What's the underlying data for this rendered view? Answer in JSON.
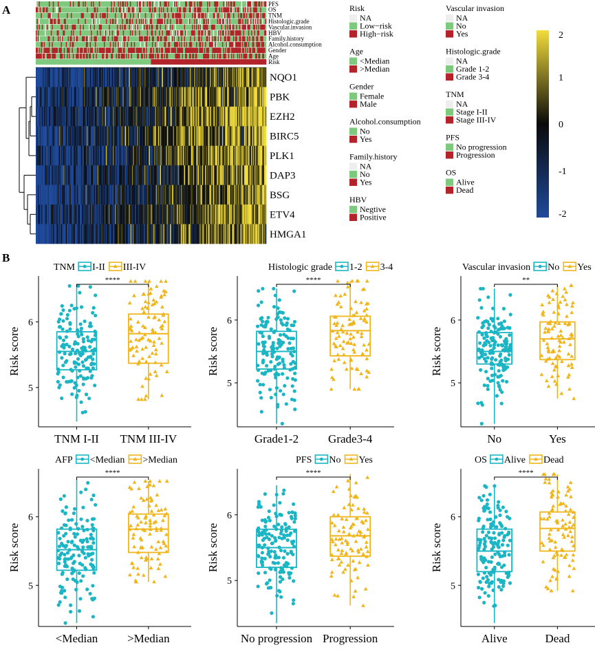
{
  "panel_labels": {
    "a": "A",
    "b": "B"
  },
  "colors": {
    "ann_green": "#7fc97f",
    "ann_red": "#b2232a",
    "ann_na": "#eeeeee",
    "heat_low": "#1f4a9b",
    "heat_mid": "#0a0a0a",
    "heat_high": "#f2dd3b",
    "box_left": "#1bb5c4",
    "box_right": "#f0b51a"
  },
  "heatmap": {
    "annotation_tracks": [
      "PFS",
      "OS",
      "TNM",
      "Histologic.grade",
      "Vascular.invasion",
      "HBV",
      "Family.history",
      "Alcohol.consumption",
      "Gender",
      "Age",
      "Risk"
    ],
    "genes": [
      "NQO1",
      "PBK",
      "EZH2",
      "BIRC5",
      "PLK1",
      "DAP3",
      "BSG",
      "ETV4",
      "HMGA1"
    ],
    "colorbar": {
      "ticks": [
        "2",
        "1",
        "0",
        "-1",
        "-2"
      ],
      "min": -2,
      "max": 2
    }
  },
  "legends": [
    {
      "title": "Risk",
      "items": [
        {
          "label": "NA",
          "color": "#eeeeee"
        },
        {
          "label": "Low−risk",
          "color": "#7fc97f"
        },
        {
          "label": "High−risk",
          "color": "#b2232a"
        }
      ]
    },
    {
      "title": "Age",
      "items": [
        {
          "label": "<Median",
          "color": "#7fc97f"
        },
        {
          "label": ">Median",
          "color": "#b2232a"
        }
      ]
    },
    {
      "title": "Gender",
      "items": [
        {
          "label": "Female",
          "color": "#7fc97f"
        },
        {
          "label": "Male",
          "color": "#b2232a"
        }
      ]
    },
    {
      "title": "Alcohol.consumption",
      "items": [
        {
          "label": "No",
          "color": "#7fc97f"
        },
        {
          "label": "Yes",
          "color": "#b2232a"
        }
      ]
    },
    {
      "title": "Family.history",
      "items": [
        {
          "label": "NA",
          "color": "#eeeeee"
        },
        {
          "label": "No",
          "color": "#7fc97f"
        },
        {
          "label": "Yes",
          "color": "#b2232a"
        }
      ]
    },
    {
      "title": "HBV",
      "items": [
        {
          "label": "Negtive",
          "color": "#7fc97f"
        },
        {
          "label": "Positive",
          "color": "#b2232a"
        }
      ]
    },
    {
      "title": "Vascular invasion",
      "items": [
        {
          "label": "NA",
          "color": "#eeeeee"
        },
        {
          "label": "No",
          "color": "#7fc97f"
        },
        {
          "label": "Yes",
          "color": "#b2232a"
        }
      ]
    },
    {
      "title": "Histologic.grade",
      "items": [
        {
          "label": "NA",
          "color": "#eeeeee"
        },
        {
          "label": "Grade 1-2",
          "color": "#7fc97f"
        },
        {
          "label": "Grade 3-4",
          "color": "#b2232a"
        }
      ]
    },
    {
      "title": "TNM",
      "items": [
        {
          "label": "NA",
          "color": "#eeeeee"
        },
        {
          "label": "Stage I-II",
          "color": "#7fc97f"
        },
        {
          "label": "Stage III-IV",
          "color": "#b2232a"
        }
      ]
    },
    {
      "title": "PFS",
      "items": [
        {
          "label": "No progression",
          "color": "#7fc97f"
        },
        {
          "label": "Progression",
          "color": "#b2232a"
        }
      ]
    },
    {
      "title": "OS",
      "items": [
        {
          "label": "Alive",
          "color": "#7fc97f"
        },
        {
          "label": "Dead",
          "color": "#b2232a"
        }
      ]
    }
  ],
  "chart_data": [
    {
      "type": "box",
      "legend_title": "TNM",
      "legend_labels": [
        "I-II",
        "III-IV"
      ],
      "categories": [
        "TNM I-II",
        "TNM III-IV"
      ],
      "ylabel": "Risk score",
      "yticks": [
        5,
        6
      ],
      "ylim": [
        4.4,
        6.7
      ],
      "significance": "****",
      "boxes": [
        {
          "q1": 5.27,
          "median": 5.55,
          "q3": 5.85,
          "whisker_low": 4.48,
          "whisker_high": 6.55
        },
        {
          "q1": 5.37,
          "median": 5.82,
          "q3": 6.12,
          "whisker_low": 4.82,
          "whisker_high": 6.62
        }
      ]
    },
    {
      "type": "box",
      "legend_title": "Histologic grade",
      "legend_labels": [
        "1-2",
        "3-4"
      ],
      "categories": [
        "Grade1-2",
        "Grade3-4"
      ],
      "ylabel": "Risk score",
      "yticks": [
        5,
        6
      ],
      "ylim": [
        4.3,
        6.7
      ],
      "significance": "****",
      "boxes": [
        {
          "q1": 5.22,
          "median": 5.5,
          "q3": 5.82,
          "whisker_low": 4.35,
          "whisker_high": 6.5
        },
        {
          "q1": 5.43,
          "median": 5.83,
          "q3": 6.06,
          "whisker_low": 4.9,
          "whisker_high": 6.62
        }
      ]
    },
    {
      "type": "box",
      "legend_title": "Vascular invasion",
      "legend_labels": [
        "No",
        "Yes"
      ],
      "categories": [
        "No",
        "Yes"
      ],
      "ylabel": "Risk score",
      "yticks": [
        5,
        6
      ],
      "ylim": [
        4.3,
        6.7
      ],
      "significance": "**",
      "boxes": [
        {
          "q1": 5.3,
          "median": 5.5,
          "q3": 5.8,
          "whisker_low": 4.35,
          "whisker_high": 6.5
        },
        {
          "q1": 5.37,
          "median": 5.7,
          "q3": 5.97,
          "whisker_low": 4.75,
          "whisker_high": 6.55
        }
      ]
    },
    {
      "type": "box",
      "legend_title": "AFP",
      "legend_labels": [
        "<Median",
        ">Median"
      ],
      "categories": [
        "<Median",
        ">Median"
      ],
      "ylabel": "Risk score",
      "yticks": [
        5,
        6
      ],
      "ylim": [
        4.4,
        6.7
      ],
      "significance": "****",
      "boxes": [
        {
          "q1": 5.22,
          "median": 5.52,
          "q3": 5.82,
          "whisker_low": 4.45,
          "whisker_high": 6.55
        },
        {
          "q1": 5.48,
          "median": 5.82,
          "q3": 6.04,
          "whisker_low": 5.05,
          "whisker_high": 6.52
        }
      ]
    },
    {
      "type": "box",
      "legend_title": "PFS",
      "legend_labels": [
        "No",
        "Yes"
      ],
      "categories": [
        "No progression",
        "Progression"
      ],
      "ylabel": "Risk score",
      "yticks": [
        5,
        6
      ],
      "ylim": [
        4.3,
        6.7
      ],
      "significance": "****",
      "boxes": [
        {
          "q1": 5.2,
          "median": 5.5,
          "q3": 5.78,
          "whisker_low": 4.35,
          "whisker_high": 6.45
        },
        {
          "q1": 5.37,
          "median": 5.68,
          "q3": 5.97,
          "whisker_low": 4.62,
          "whisker_high": 6.62
        }
      ]
    },
    {
      "type": "box",
      "legend_title": "OS",
      "legend_labels": [
        "Alive",
        "Dead"
      ],
      "categories": [
        "Alive",
        "Dead"
      ],
      "ylabel": "Risk score",
      "yticks": [
        5,
        6
      ],
      "ylim": [
        4.4,
        6.7
      ],
      "significance": "****",
      "boxes": [
        {
          "q1": 5.2,
          "median": 5.5,
          "q3": 5.82,
          "whisker_low": 4.45,
          "whisker_high": 6.45
        },
        {
          "q1": 5.5,
          "median": 5.83,
          "q3": 6.07,
          "whisker_low": 4.92,
          "whisker_high": 6.62
        }
      ]
    }
  ]
}
